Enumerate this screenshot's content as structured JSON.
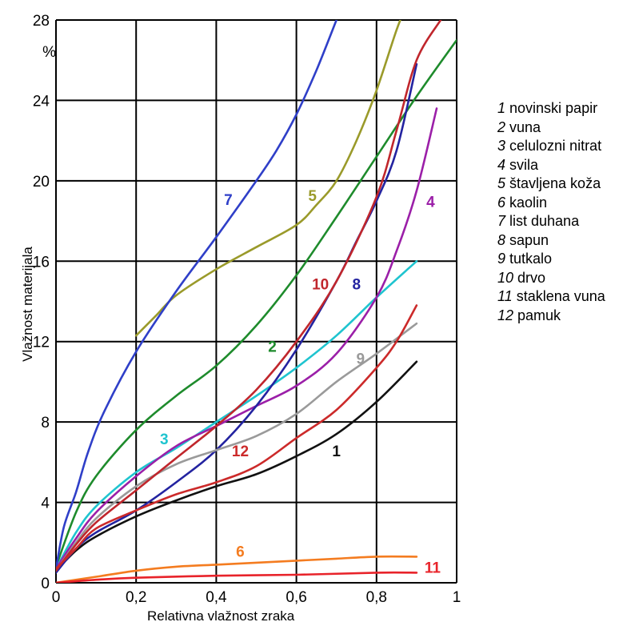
{
  "chart_data": {
    "type": "line",
    "xlabel": "Relativna vlažnost zraka",
    "ylabel": "Vlažnost materijala",
    "y_unit": "%",
    "xlim": [
      0,
      1
    ],
    "ylim": [
      0,
      28
    ],
    "x_ticks": [
      "0",
      "0,2",
      "0,4",
      "0,6",
      "0,8",
      "1"
    ],
    "y_ticks": [
      "0",
      "4",
      "8",
      "12",
      "16",
      "20",
      "24",
      "28"
    ],
    "grid": true,
    "legend_position": "right",
    "series": [
      {
        "id": "1",
        "name": "novinski papir",
        "color": "#111111",
        "points": [
          [
            0,
            0.6
          ],
          [
            0.05,
            1.6
          ],
          [
            0.1,
            2.3
          ],
          [
            0.2,
            3.3
          ],
          [
            0.3,
            4.1
          ],
          [
            0.4,
            4.8
          ],
          [
            0.5,
            5.4
          ],
          [
            0.6,
            6.3
          ],
          [
            0.7,
            7.4
          ],
          [
            0.8,
            9.0
          ],
          [
            0.9,
            11.0
          ]
        ]
      },
      {
        "id": "2",
        "name": "vuna",
        "color": "#1e8b2c",
        "points": [
          [
            0,
            0.8
          ],
          [
            0.05,
            3.5
          ],
          [
            0.1,
            5.3
          ],
          [
            0.2,
            7.6
          ],
          [
            0.3,
            9.3
          ],
          [
            0.4,
            10.8
          ],
          [
            0.5,
            12.8
          ],
          [
            0.6,
            15.3
          ],
          [
            0.7,
            18.2
          ],
          [
            0.8,
            21.2
          ],
          [
            0.9,
            24.2
          ],
          [
            1.0,
            27.0
          ]
        ]
      },
      {
        "id": "3",
        "name": "celulozni nitrat",
        "color": "#1fc4cf",
        "points": [
          [
            0,
            0.7
          ],
          [
            0.05,
            2.5
          ],
          [
            0.1,
            3.8
          ],
          [
            0.2,
            5.5
          ],
          [
            0.3,
            6.7
          ],
          [
            0.4,
            8.0
          ],
          [
            0.5,
            9.3
          ],
          [
            0.6,
            10.7
          ],
          [
            0.7,
            12.3
          ],
          [
            0.8,
            14.2
          ],
          [
            0.9,
            16.0
          ]
        ]
      },
      {
        "id": "4",
        "name": "svila",
        "color": "#9b1fa8",
        "points": [
          [
            0,
            0.7
          ],
          [
            0.05,
            2.2
          ],
          [
            0.1,
            3.5
          ],
          [
            0.2,
            5.3
          ],
          [
            0.3,
            6.8
          ],
          [
            0.4,
            7.8
          ],
          [
            0.5,
            8.8
          ],
          [
            0.6,
            9.8
          ],
          [
            0.7,
            11.4
          ],
          [
            0.8,
            14.2
          ],
          [
            0.85,
            16.5
          ],
          [
            0.9,
            19.5
          ],
          [
            0.95,
            23.6
          ]
        ]
      },
      {
        "id": "5",
        "name": "štavljena koža",
        "color": "#9a9a2a",
        "points": [
          [
            0.2,
            12.3
          ],
          [
            0.25,
            13.3
          ],
          [
            0.3,
            14.3
          ],
          [
            0.4,
            15.6
          ],
          [
            0.5,
            16.7
          ],
          [
            0.6,
            17.8
          ],
          [
            0.65,
            18.8
          ],
          [
            0.7,
            20.0
          ],
          [
            0.75,
            22.0
          ],
          [
            0.8,
            24.5
          ],
          [
            0.85,
            27.5
          ],
          [
            0.88,
            29.0
          ]
        ]
      },
      {
        "id": "6",
        "name": "kaolin",
        "color": "#f47c20",
        "points": [
          [
            0,
            0
          ],
          [
            0.1,
            0.3
          ],
          [
            0.2,
            0.6
          ],
          [
            0.3,
            0.8
          ],
          [
            0.4,
            0.9
          ],
          [
            0.5,
            1.0
          ],
          [
            0.6,
            1.1
          ],
          [
            0.7,
            1.2
          ],
          [
            0.8,
            1.3
          ],
          [
            0.9,
            1.3
          ]
        ]
      },
      {
        "id": "7",
        "name": "list duhana",
        "color": "#2f3fc8",
        "points": [
          [
            0,
            0.7
          ],
          [
            0.02,
            2.8
          ],
          [
            0.05,
            4.5
          ],
          [
            0.08,
            6.5
          ],
          [
            0.12,
            8.5
          ],
          [
            0.2,
            11.5
          ],
          [
            0.3,
            14.5
          ],
          [
            0.4,
            17.2
          ],
          [
            0.5,
            20.0
          ],
          [
            0.55,
            21.5
          ],
          [
            0.6,
            23.3
          ],
          [
            0.65,
            25.5
          ],
          [
            0.7,
            28.0
          ]
        ]
      },
      {
        "id": "8",
        "name": "sapun",
        "color": "#2323a0",
        "points": [
          [
            0,
            0.5
          ],
          [
            0.05,
            1.7
          ],
          [
            0.1,
            2.5
          ],
          [
            0.2,
            3.6
          ],
          [
            0.3,
            5.0
          ],
          [
            0.4,
            6.6
          ],
          [
            0.5,
            8.8
          ],
          [
            0.6,
            11.6
          ],
          [
            0.7,
            15.0
          ],
          [
            0.75,
            17.0
          ],
          [
            0.8,
            19.0
          ],
          [
            0.85,
            21.5
          ],
          [
            0.9,
            25.8
          ]
        ]
      },
      {
        "id": "9",
        "name": "tutkalo",
        "color": "#9a9a9a",
        "points": [
          [
            0,
            0.6
          ],
          [
            0.05,
            2.0
          ],
          [
            0.1,
            3.2
          ],
          [
            0.2,
            4.8
          ],
          [
            0.3,
            5.9
          ],
          [
            0.4,
            6.6
          ],
          [
            0.5,
            7.3
          ],
          [
            0.6,
            8.4
          ],
          [
            0.7,
            10.0
          ],
          [
            0.8,
            11.4
          ],
          [
            0.9,
            12.9
          ]
        ]
      },
      {
        "id": "10",
        "name": "drvo",
        "color": "#c0262c",
        "points": [
          [
            0,
            0.6
          ],
          [
            0.05,
            1.9
          ],
          [
            0.1,
            3.0
          ],
          [
            0.2,
            4.6
          ],
          [
            0.3,
            6.2
          ],
          [
            0.4,
            7.8
          ],
          [
            0.5,
            9.6
          ],
          [
            0.6,
            12.0
          ],
          [
            0.7,
            15.0
          ],
          [
            0.8,
            19.2
          ],
          [
            0.85,
            22.5
          ],
          [
            0.9,
            26.0
          ],
          [
            0.96,
            28.0
          ]
        ]
      },
      {
        "id": "11",
        "name": "staklena vuna",
        "color": "#e8232a",
        "points": [
          [
            0,
            0
          ],
          [
            0.1,
            0.15
          ],
          [
            0.2,
            0.25
          ],
          [
            0.4,
            0.35
          ],
          [
            0.6,
            0.4
          ],
          [
            0.8,
            0.5
          ],
          [
            0.9,
            0.5
          ]
        ]
      },
      {
        "id": "12",
        "name": "pamuk",
        "color": "#cc2a2a",
        "points": [
          [
            0,
            0.7
          ],
          [
            0.05,
            1.7
          ],
          [
            0.1,
            2.7
          ],
          [
            0.2,
            3.6
          ],
          [
            0.3,
            4.4
          ],
          [
            0.4,
            5.0
          ],
          [
            0.5,
            5.8
          ],
          [
            0.6,
            7.2
          ],
          [
            0.7,
            8.6
          ],
          [
            0.8,
            10.7
          ],
          [
            0.85,
            12.0
          ],
          [
            0.9,
            13.8
          ]
        ]
      }
    ],
    "curve_labels": [
      {
        "text": "1",
        "series": "1",
        "x": 0.7,
        "y": 6.3
      },
      {
        "text": "2",
        "series": "2",
        "x": 0.54,
        "y": 11.5
      },
      {
        "text": "3",
        "series": "3",
        "x": 0.27,
        "y": 6.9
      },
      {
        "text": "4",
        "series": "4",
        "x": 0.935,
        "y": 18.7
      },
      {
        "text": "5",
        "series": "5",
        "x": 0.64,
        "y": 19.0
      },
      {
        "text": "6",
        "series": "6",
        "x": 0.46,
        "y": 1.3
      },
      {
        "text": "7",
        "series": "7",
        "x": 0.43,
        "y": 18.8
      },
      {
        "text": "8",
        "series": "8",
        "x": 0.75,
        "y": 14.6
      },
      {
        "text": "9",
        "series": "9",
        "x": 0.76,
        "y": 10.9
      },
      {
        "text": "10",
        "series": "10",
        "x": 0.66,
        "y": 14.6
      },
      {
        "text": "11",
        "series": "11",
        "x": 0.94,
        "y": 0.5
      },
      {
        "text": "12",
        "series": "12",
        "x": 0.46,
        "y": 6.3
      }
    ]
  }
}
